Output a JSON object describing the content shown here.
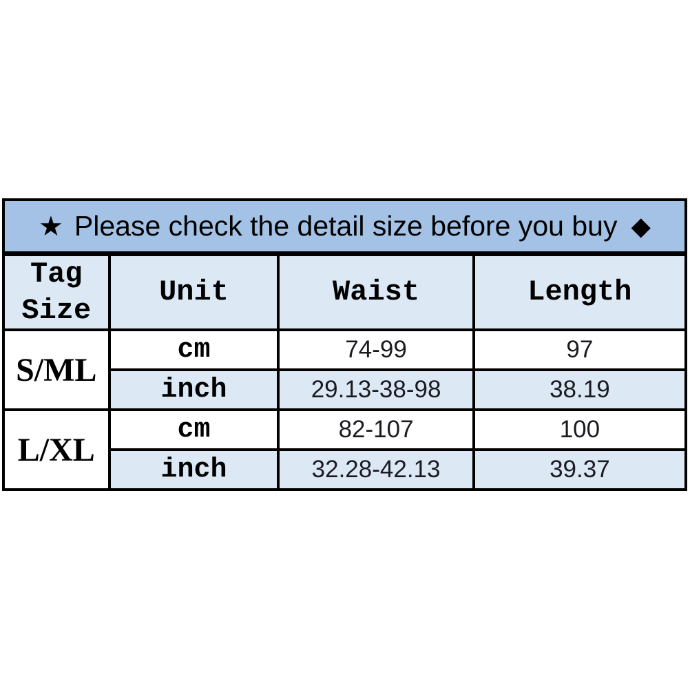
{
  "banner": {
    "star": "★",
    "text": "Please check the detail size before you buy",
    "diamond": "◆"
  },
  "colors": {
    "banner_bg": "#a3c2e6",
    "header_row_bg": "#dce9f5",
    "inch_row_bg": "#dce9f5",
    "cm_row_bg": "#ffffff",
    "border": "#000000",
    "text": "#000000"
  },
  "table": {
    "columns": {
      "tag_size": "Tag\nSize",
      "unit": "Unit",
      "waist": "Waist",
      "length": "Length"
    },
    "rows": [
      {
        "size": "S/ML",
        "units": [
          {
            "unit": "cm",
            "waist": "74-99",
            "length": "97"
          },
          {
            "unit": "inch",
            "waist": "29.13-38-98",
            "length": "38.19"
          }
        ]
      },
      {
        "size": "L/XL",
        "units": [
          {
            "unit": "cm",
            "waist": "82-107",
            "length": "100"
          },
          {
            "unit": "inch",
            "waist": "32.28-42.13",
            "length": "39.37"
          }
        ]
      }
    ]
  }
}
